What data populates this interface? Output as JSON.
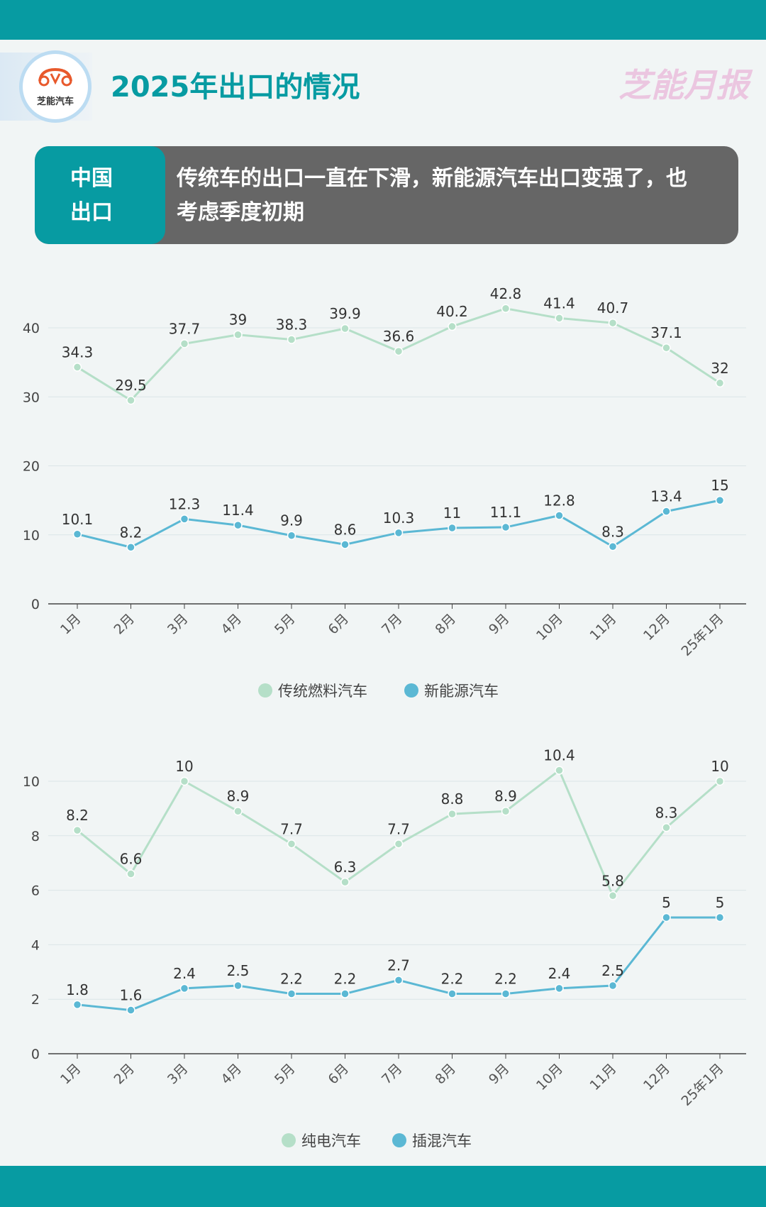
{
  "header": {
    "title": "2025年出口的情况",
    "logo_text": "芝能汽车",
    "brand": "芝能月报"
  },
  "summary": {
    "tag_line1": "中国",
    "tag_line2": "出口",
    "text": "传统车的出口一直在下滑，新能源汽车出口变强了，也考虑季度初期"
  },
  "colors": {
    "teal": "#079ba2",
    "series_a": "#b5dfc8",
    "series_b": "#5bb8d4"
  },
  "chart_data": [
    {
      "type": "line",
      "categories": [
        "1月",
        "2月",
        "3月",
        "4月",
        "5月",
        "6月",
        "7月",
        "8月",
        "9月",
        "10月",
        "11月",
        "12月",
        "25年1月"
      ],
      "ylim": [
        0,
        40
      ],
      "yticks": [
        0,
        10,
        20,
        30,
        40
      ],
      "grid": true,
      "legend": "bottom",
      "series": [
        {
          "name": "传统燃料汽车",
          "color": "#b5dfc8",
          "values": [
            34.3,
            29.5,
            37.7,
            39,
            38.3,
            39.9,
            36.6,
            40.2,
            42.8,
            41.4,
            40.7,
            37.1,
            32
          ]
        },
        {
          "name": "新能源汽车",
          "color": "#5bb8d4",
          "values": [
            10.1,
            8.2,
            12.3,
            11.4,
            9.9,
            8.6,
            10.3,
            11,
            11.1,
            12.8,
            8.3,
            13.4,
            15
          ]
        }
      ]
    },
    {
      "type": "line",
      "categories": [
        "1月",
        "2月",
        "3月",
        "4月",
        "5月",
        "6月",
        "7月",
        "8月",
        "9月",
        "10月",
        "11月",
        "12月",
        "25年1月"
      ],
      "ylim": [
        0,
        10
      ],
      "yticks": [
        0,
        2,
        4,
        6,
        8,
        10
      ],
      "grid": true,
      "legend": "bottom",
      "series": [
        {
          "name": "纯电汽车",
          "color": "#b5dfc8",
          "values": [
            8.2,
            6.6,
            10,
            8.9,
            7.7,
            6.3,
            7.7,
            8.8,
            8.9,
            10.4,
            5.8,
            8.3,
            10
          ]
        },
        {
          "name": "插混汽车",
          "color": "#5bb8d4",
          "values": [
            1.8,
            1.6,
            2.4,
            2.5,
            2.2,
            2.2,
            2.7,
            2.2,
            2.2,
            2.4,
            2.5,
            5,
            5
          ]
        }
      ]
    }
  ]
}
